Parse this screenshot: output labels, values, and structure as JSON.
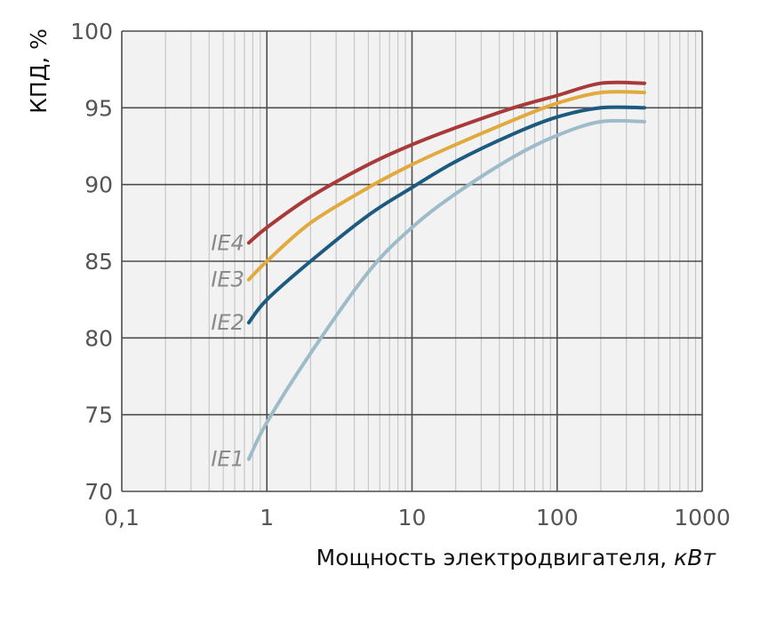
{
  "chart_data": {
    "type": "line",
    "title": "",
    "xlabel": "Мощность электродвигателя,",
    "xlabel_unit": "кВт",
    "ylabel": "КПД, %",
    "x_scale": "log",
    "xlim": [
      0.1,
      1000
    ],
    "ylim": [
      70,
      100
    ],
    "x_ticks": [
      {
        "value": 0.1,
        "label": "0,1"
      },
      {
        "value": 1,
        "label": "1"
      },
      {
        "value": 10,
        "label": "10"
      },
      {
        "value": 100,
        "label": "100"
      },
      {
        "value": 1000,
        "label": "1000"
      }
    ],
    "y_ticks": [
      {
        "value": 70,
        "label": "70"
      },
      {
        "value": 75,
        "label": "75"
      },
      {
        "value": 80,
        "label": "80"
      },
      {
        "value": 85,
        "label": "85"
      },
      {
        "value": 90,
        "label": "90"
      },
      {
        "value": 95,
        "label": "95"
      },
      {
        "value": 100,
        "label": "100"
      }
    ],
    "grid": true,
    "series": [
      {
        "name": "IE4",
        "color": "#a83a3a",
        "points": [
          [
            0.75,
            86.2
          ],
          [
            1,
            87.2
          ],
          [
            2,
            89.2
          ],
          [
            5,
            91.3
          ],
          [
            10,
            92.6
          ],
          [
            20,
            93.7
          ],
          [
            50,
            95.0
          ],
          [
            100,
            95.8
          ],
          [
            200,
            96.6
          ],
          [
            400,
            96.6
          ]
        ]
      },
      {
        "name": "IE3",
        "color": "#e2a93c",
        "points": [
          [
            0.75,
            83.8
          ],
          [
            1,
            85.0
          ],
          [
            2,
            87.5
          ],
          [
            5,
            89.8
          ],
          [
            10,
            91.3
          ],
          [
            20,
            92.6
          ],
          [
            50,
            94.2
          ],
          [
            100,
            95.3
          ],
          [
            200,
            96.0
          ],
          [
            400,
            96.0
          ]
        ]
      },
      {
        "name": "IE2",
        "color": "#1d5a80",
        "points": [
          [
            0.75,
            81.0
          ],
          [
            1,
            82.5
          ],
          [
            2,
            85.0
          ],
          [
            5,
            88.0
          ],
          [
            10,
            89.8
          ],
          [
            20,
            91.5
          ],
          [
            50,
            93.3
          ],
          [
            100,
            94.4
          ],
          [
            200,
            95.0
          ],
          [
            400,
            95.0
          ]
        ]
      },
      {
        "name": "IE1",
        "color": "#9dbbc8",
        "points": [
          [
            0.75,
            72.1
          ],
          [
            1,
            74.5
          ],
          [
            2,
            79.0
          ],
          [
            5,
            84.3
          ],
          [
            10,
            87.2
          ],
          [
            20,
            89.4
          ],
          [
            50,
            91.8
          ],
          [
            100,
            93.2
          ],
          [
            200,
            94.1
          ],
          [
            400,
            94.1
          ]
        ]
      }
    ]
  }
}
